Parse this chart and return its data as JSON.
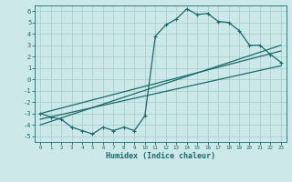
{
  "xlabel": "Humidex (Indice chaleur)",
  "ylabel": "",
  "xlim": [
    -0.5,
    23.5
  ],
  "ylim": [
    -5.5,
    6.5
  ],
  "xticks": [
    0,
    1,
    2,
    3,
    4,
    5,
    6,
    7,
    8,
    9,
    10,
    11,
    12,
    13,
    14,
    15,
    16,
    17,
    18,
    19,
    20,
    21,
    22,
    23
  ],
  "yticks": [
    -5,
    -4,
    -3,
    -2,
    -1,
    0,
    1,
    2,
    3,
    4,
    5,
    6
  ],
  "bg_color": "#cce8e8",
  "line_color": "#1a6b6b",
  "grid_color": "#aacfcf",
  "line1_x": [
    0,
    1,
    2,
    3,
    4,
    5,
    6,
    7,
    8,
    9,
    10,
    11,
    12,
    13,
    14,
    15,
    16,
    17,
    18,
    19,
    20,
    21,
    22,
    23
  ],
  "line1_y": [
    -3.0,
    -3.3,
    -3.5,
    -4.2,
    -4.5,
    -4.8,
    -4.2,
    -4.5,
    -4.2,
    -4.5,
    -3.2,
    3.8,
    4.8,
    5.3,
    6.2,
    5.7,
    5.8,
    5.1,
    5.0,
    4.3,
    3.0,
    3.0,
    2.2,
    1.5
  ],
  "line2_x": [
    0,
    23
  ],
  "line2_y": [
    -3.0,
    2.5
  ],
  "line3_x": [
    0,
    23
  ],
  "line3_y": [
    -3.5,
    1.2
  ],
  "line4_x": [
    0,
    23
  ],
  "line4_y": [
    -4.0,
    3.0
  ]
}
